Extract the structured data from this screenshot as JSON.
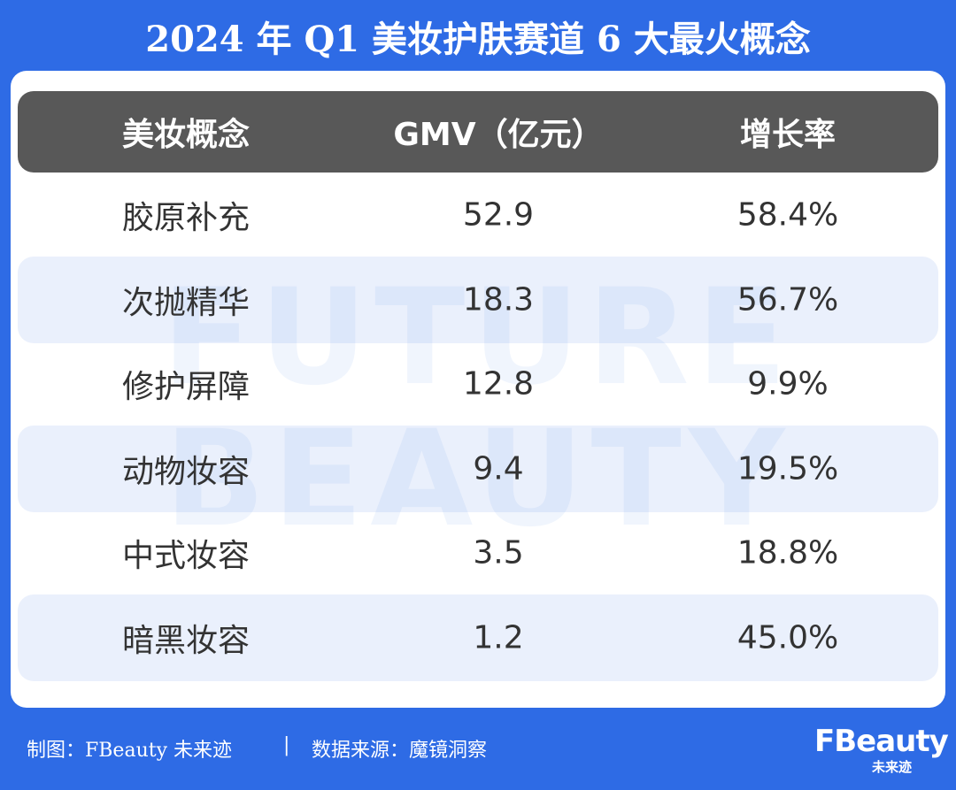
{
  "header": {
    "title": "2024 年 Q1 美妆护肤赛道 6 大最火概念"
  },
  "table": {
    "columns": [
      "美妆概念",
      "GMV（亿元）",
      "增长率"
    ],
    "rows": [
      [
        "胶原补充",
        "52.9",
        "58.4%"
      ],
      [
        "次抛精华",
        "18.3",
        "56.7%"
      ],
      [
        "修护屏障",
        "12.8",
        "9.9%"
      ],
      [
        "动物妆容",
        "9.4",
        "19.5%"
      ],
      [
        "中式妆容",
        "3.5",
        "18.8%"
      ],
      [
        "暗黑妆容",
        "1.2",
        "45.0%"
      ]
    ]
  },
  "watermark": [
    "FUTURE",
    "BEAUTY"
  ],
  "footer": {
    "credit": "制图：FBeauty 未来迹",
    "source": "数据来源：魔镜洞察"
  },
  "logo": {
    "name": "FBeauty",
    "subtitle": "未来迹"
  }
}
